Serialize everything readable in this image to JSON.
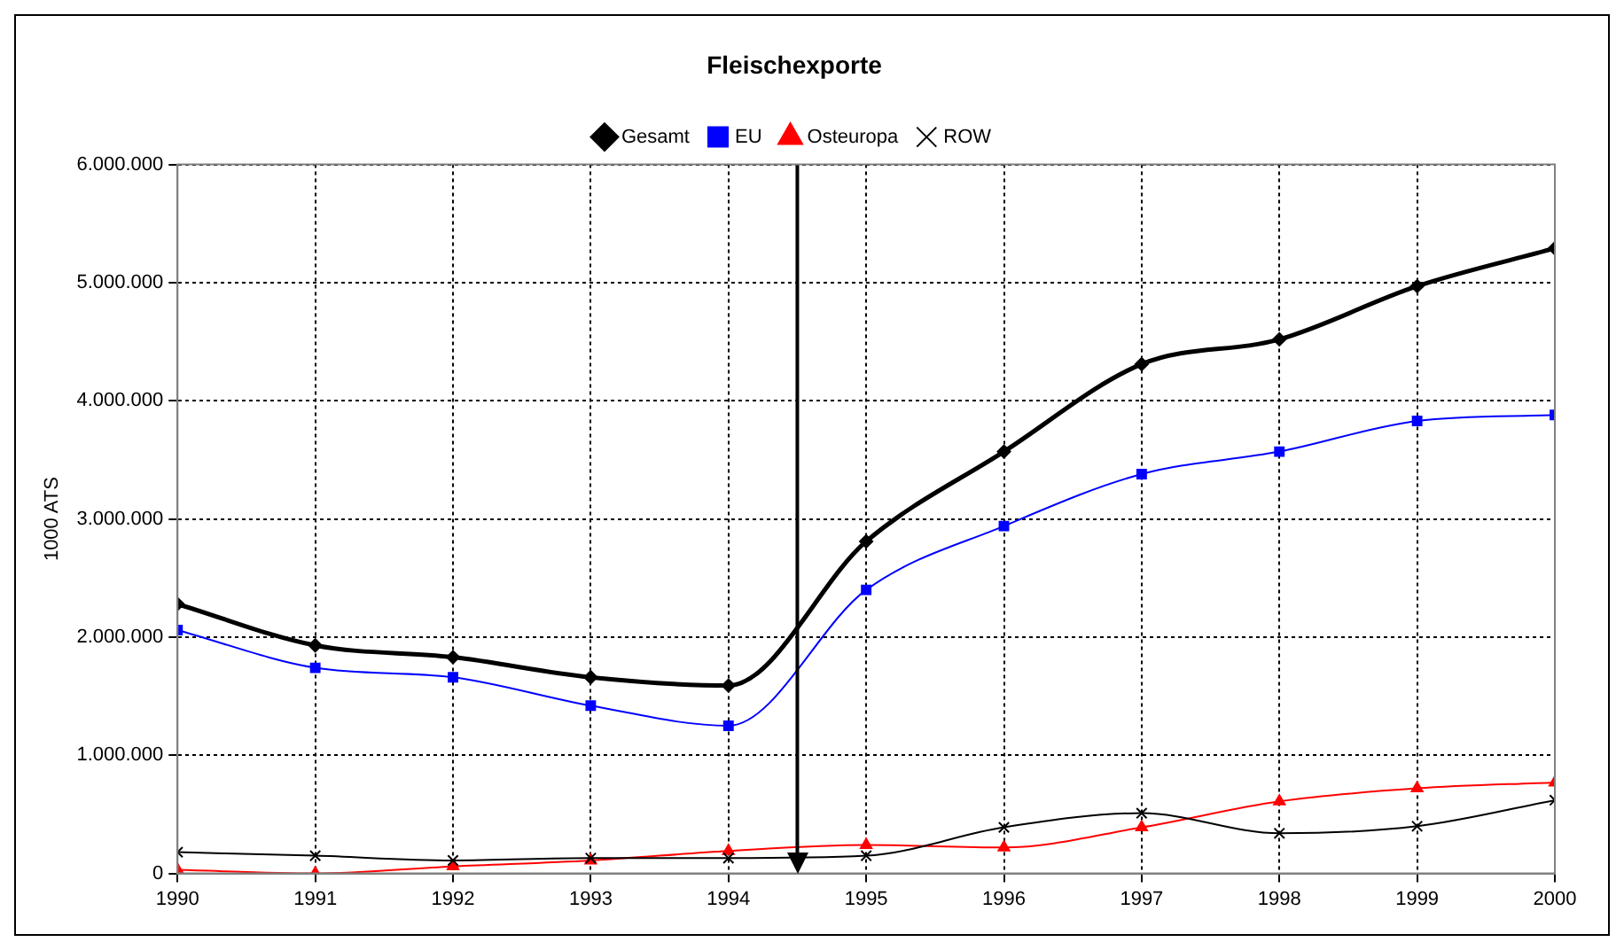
{
  "chart_data": {
    "type": "line",
    "title": "Fleischexporte",
    "ylabel": "1000 ATS",
    "x": [
      1990,
      1991,
      1992,
      1993,
      1994,
      1995,
      1996,
      1997,
      1998,
      1999,
      2000
    ],
    "xlim": [
      1990,
      2000
    ],
    "xticks": [
      1990,
      1991,
      1992,
      1993,
      1994,
      1995,
      1996,
      1997,
      1998,
      1999,
      2000
    ],
    "ylim": [
      0,
      6000000
    ],
    "yticks": [
      {
        "value": 0,
        "label": "0"
      },
      {
        "value": 1000000,
        "label": "1.000.000"
      },
      {
        "value": 2000000,
        "label": "2.000.000"
      },
      {
        "value": 3000000,
        "label": "3.000.000"
      },
      {
        "value": 4000000,
        "label": "4.000.000"
      },
      {
        "value": 5000000,
        "label": "5.000.000"
      },
      {
        "value": 6000000,
        "label": "6.000.000"
      }
    ],
    "grid": true,
    "legend": "top",
    "line_style": "solid",
    "ref_lines": [
      {
        "axis": "x",
        "value": 1994.5,
        "color": "#000000",
        "line_style": "solid"
      }
    ],
    "series": [
      {
        "name": "Gesamt",
        "color": "#000000",
        "marker": "diamond",
        "values": [
          2280000,
          1930000,
          1830000,
          1660000,
          1590000,
          2810000,
          3570000,
          4310000,
          4520000,
          4970000,
          5290000
        ]
      },
      {
        "name": "EU",
        "color": "#0000ff",
        "marker": "square",
        "values": [
          2060000,
          1740000,
          1660000,
          1420000,
          1250000,
          2400000,
          2940000,
          3380000,
          3570000,
          3830000,
          3880000
        ]
      },
      {
        "name": "Osteuropa",
        "color": "#ff0000",
        "marker": "triangle",
        "values": [
          30000,
          0,
          60000,
          110000,
          190000,
          240000,
          220000,
          390000,
          610000,
          720000,
          770000
        ]
      },
      {
        "name": "ROW",
        "color": "#000000",
        "marker": "cross",
        "values": [
          180000,
          150000,
          110000,
          130000,
          130000,
          150000,
          390000,
          510000,
          340000,
          400000,
          620000
        ]
      }
    ]
  }
}
